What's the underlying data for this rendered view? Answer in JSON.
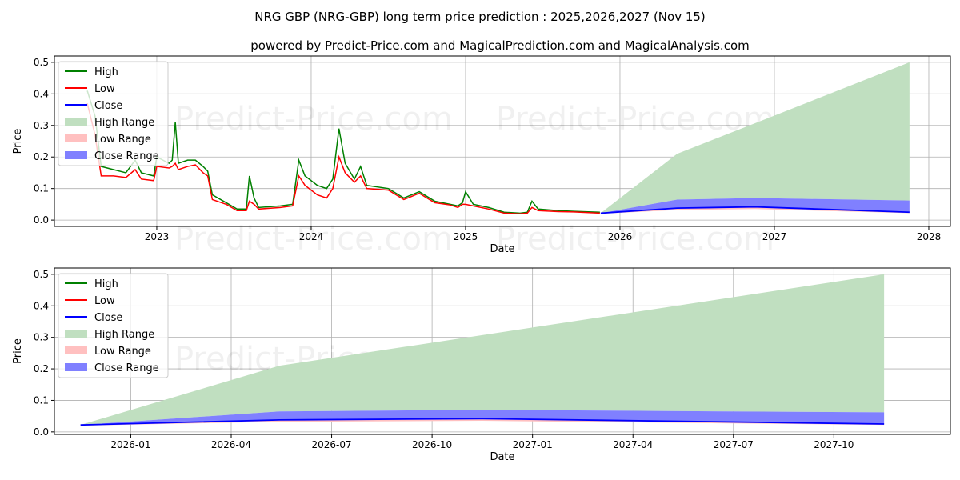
{
  "title": "NRG GBP (NRG-GBP) long term price prediction : 2025,2026,2027 (Nov 15)",
  "subtitle": "powered by Predict-Price.com and MagicalPrediction.com and MagicalAnalysis.com",
  "watermark": "Predict-Price.com",
  "colors": {
    "high": "#008000",
    "low": "#ff0000",
    "close": "#0000ff",
    "high_range": "#c0dfc0",
    "low_range": "#ffc0c0",
    "close_range": "#8080ff"
  },
  "chart_data": [
    {
      "type": "line",
      "xlabel": "Date",
      "ylabel": "Price",
      "xlim": [
        2022.337,
        2028.14
      ],
      "ylim": [
        -0.02,
        0.52
      ],
      "xticks": [
        {
          "v": 2023,
          "label": "2023"
        },
        {
          "v": 2024,
          "label": "2024"
        },
        {
          "v": 2025,
          "label": "2025"
        },
        {
          "v": 2026,
          "label": "2026"
        },
        {
          "v": 2027,
          "label": "2027"
        },
        {
          "v": 2028,
          "label": "2028"
        }
      ],
      "yticks": [
        {
          "v": 0,
          "label": "0.0"
        },
        {
          "v": 0.1,
          "label": "0.1"
        },
        {
          "v": 0.2,
          "label": "0.2"
        },
        {
          "v": 0.3,
          "label": "0.3"
        },
        {
          "v": 0.4,
          "label": "0.4"
        },
        {
          "v": 0.5,
          "label": "0.5"
        }
      ],
      "legend": [
        "High",
        "Low",
        "Close",
        "High Range",
        "Low Range",
        "Close Range"
      ],
      "legend_position": "upper-left",
      "history": [
        [
          2022.55,
          0.41,
          0.37
        ],
        [
          2022.6,
          0.33,
          0.27
        ],
        [
          2022.64,
          0.17,
          0.14
        ],
        [
          2022.72,
          0.16,
          0.14
        ],
        [
          2022.8,
          0.15,
          0.135
        ],
        [
          2022.86,
          0.19,
          0.16
        ],
        [
          2022.9,
          0.15,
          0.13
        ],
        [
          2022.98,
          0.14,
          0.125
        ],
        [
          2023.0,
          0.2,
          0.17
        ],
        [
          2023.08,
          0.18,
          0.165
        ],
        [
          2023.1,
          0.19,
          0.17
        ],
        [
          2023.12,
          0.31,
          0.18
        ],
        [
          2023.14,
          0.18,
          0.16
        ],
        [
          2023.2,
          0.19,
          0.17
        ],
        [
          2023.25,
          0.19,
          0.175
        ],
        [
          2023.3,
          0.17,
          0.15
        ],
        [
          2023.33,
          0.155,
          0.14
        ],
        [
          2023.36,
          0.08,
          0.065
        ],
        [
          2023.45,
          0.055,
          0.05
        ],
        [
          2023.52,
          0.035,
          0.03
        ],
        [
          2023.58,
          0.035,
          0.03
        ],
        [
          2023.6,
          0.14,
          0.06
        ],
        [
          2023.63,
          0.07,
          0.05
        ],
        [
          2023.66,
          0.04,
          0.035
        ],
        [
          2023.8,
          0.045,
          0.04
        ],
        [
          2023.88,
          0.05,
          0.045
        ],
        [
          2023.92,
          0.19,
          0.14
        ],
        [
          2023.96,
          0.14,
          0.11
        ],
        [
          2024.04,
          0.11,
          0.08
        ],
        [
          2024.1,
          0.1,
          0.07
        ],
        [
          2024.14,
          0.13,
          0.1
        ],
        [
          2024.18,
          0.29,
          0.2
        ],
        [
          2024.22,
          0.18,
          0.15
        ],
        [
          2024.28,
          0.13,
          0.12
        ],
        [
          2024.32,
          0.17,
          0.14
        ],
        [
          2024.36,
          0.11,
          0.1
        ],
        [
          2024.5,
          0.1,
          0.095
        ],
        [
          2024.6,
          0.07,
          0.065
        ],
        [
          2024.7,
          0.09,
          0.085
        ],
        [
          2024.8,
          0.06,
          0.055
        ],
        [
          2024.9,
          0.05,
          0.048
        ],
        [
          2024.95,
          0.045,
          0.04
        ],
        [
          2024.98,
          0.055,
          0.05
        ],
        [
          2025.0,
          0.09,
          0.05
        ],
        [
          2025.05,
          0.05,
          0.045
        ],
        [
          2025.15,
          0.04,
          0.035
        ],
        [
          2025.25,
          0.025,
          0.022
        ],
        [
          2025.35,
          0.022,
          0.02
        ],
        [
          2025.4,
          0.025,
          0.022
        ],
        [
          2025.43,
          0.06,
          0.04
        ],
        [
          2025.47,
          0.035,
          0.03
        ],
        [
          2025.6,
          0.03,
          0.027
        ],
        [
          2025.7,
          0.028,
          0.026
        ],
        [
          2025.87,
          0.025,
          0.022
        ]
      ]
    },
    {
      "type": "area",
      "xlabel": "Date",
      "ylabel": "Price",
      "xlim": [
        2025.81,
        2028.04
      ],
      "ylim": [
        -0.008,
        0.52
      ],
      "xticks": [
        {
          "v": 2026.0,
          "label": "2026-01"
        },
        {
          "v": 2026.25,
          "label": "2026-04"
        },
        {
          "v": 2026.5,
          "label": "2026-07"
        },
        {
          "v": 2026.75,
          "label": "2026-10"
        },
        {
          "v": 2027.0,
          "label": "2027-01"
        },
        {
          "v": 2027.25,
          "label": "2027-04"
        },
        {
          "v": 2027.5,
          "label": "2027-07"
        },
        {
          "v": 2027.75,
          "label": "2027-10"
        }
      ],
      "yticks": [
        {
          "v": 0,
          "label": "0.0"
        },
        {
          "v": 0.1,
          "label": "0.1"
        },
        {
          "v": 0.2,
          "label": "0.2"
        },
        {
          "v": 0.3,
          "label": "0.3"
        },
        {
          "v": 0.4,
          "label": "0.4"
        },
        {
          "v": 0.5,
          "label": "0.5"
        }
      ],
      "legend": [
        "High",
        "Low",
        "Close",
        "High Range",
        "Low Range",
        "Close Range"
      ],
      "legend_position": "upper-left"
    }
  ],
  "prediction": {
    "dates": [
      2025.875,
      2026.37,
      2026.875,
      2027.875
    ],
    "high_range_top": [
      0.022,
      0.21,
      0.307,
      0.5
    ],
    "close_range_top": [
      0.022,
      0.065,
      0.07,
      0.062
    ],
    "close": [
      0.022,
      0.038,
      0.042,
      0.025
    ],
    "low_range_bottom": [
      0.02,
      0.032,
      0.035,
      0.022
    ]
  }
}
